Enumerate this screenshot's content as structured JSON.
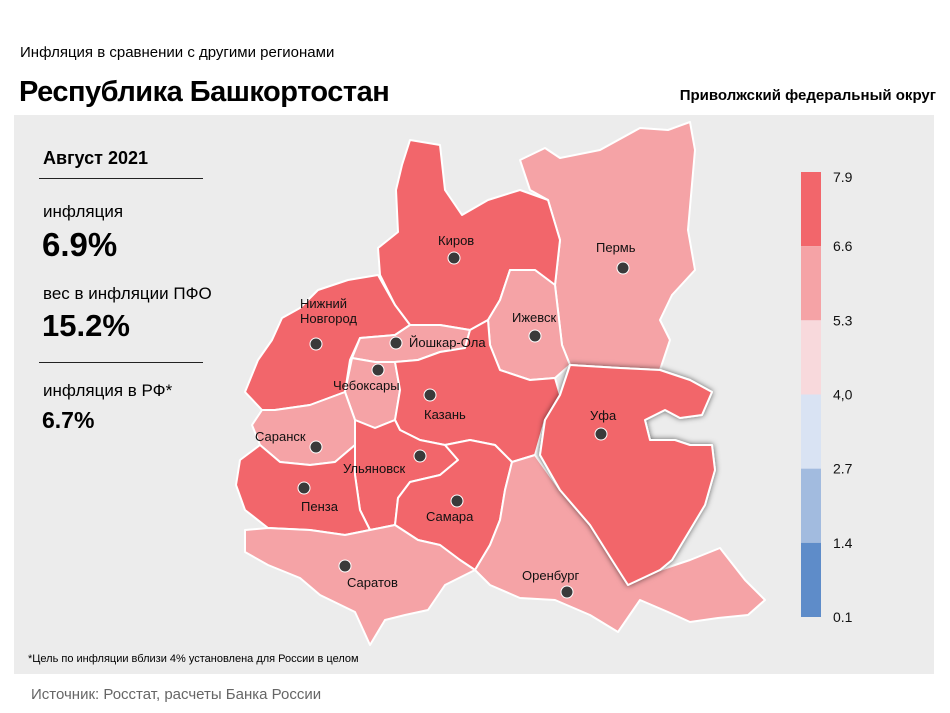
{
  "header": {
    "subtitle": "Инфляция  в сравнении  с другими  регионами",
    "title": "Республика Башкортостан",
    "district": "Приволжский федеральный округ"
  },
  "info": {
    "period": "Август 2021",
    "inflation_label": "инфляция",
    "inflation_value": "6.9%",
    "weight_label": "вес в инфляции  ПФО",
    "weight_value": "15.2%",
    "rf_label": "инфляция  в РФ*",
    "rf_value": "6.7%"
  },
  "footnote": "*Цель по инфляции вблизи 4% установлена для России в целом",
  "source": "Источник: Росстат, расчеты Банка России",
  "legend": {
    "ticks": [
      "7.9",
      "6.6",
      "5.3",
      "4,0",
      "2.7",
      "1.4",
      "0.1"
    ],
    "colors": [
      "#f2666b",
      "#f5a3a6",
      "#f8d9dc",
      "#d9e3f3",
      "#a2bbdf",
      "#5e8cc9"
    ]
  },
  "map": {
    "highlight_region": "Уфа",
    "colors": {
      "dark": "#f2666b",
      "mid": "#f5a3a6"
    },
    "cities": [
      {
        "name": "Киров",
        "class": "dark"
      },
      {
        "name": "Пермь",
        "class": "mid"
      },
      {
        "name": "Нижний\nНовгород",
        "class": "dark"
      },
      {
        "name": "Ижевск",
        "class": "mid"
      },
      {
        "name": "Йошкар-Ола",
        "class": "mid"
      },
      {
        "name": "Чебоксары",
        "class": "mid"
      },
      {
        "name": "Казань",
        "class": "dark"
      },
      {
        "name": "Уфа",
        "class": "dark"
      },
      {
        "name": "Саранск",
        "class": "mid"
      },
      {
        "name": "Ульяновск",
        "class": "dark"
      },
      {
        "name": "Пенза",
        "class": "dark"
      },
      {
        "name": "Самара",
        "class": "dark"
      },
      {
        "name": "Саратов",
        "class": "mid"
      },
      {
        "name": "Оренбург",
        "class": "mid"
      }
    ]
  }
}
